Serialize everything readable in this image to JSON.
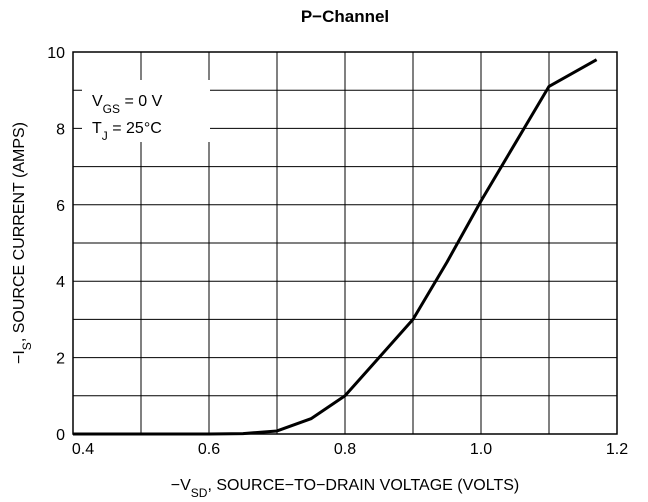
{
  "chart_data": {
    "type": "line",
    "title": "P−Channel",
    "xlabel": [
      {
        "text": "−V"
      },
      {
        "text": "SD",
        "sub": true
      },
      {
        "text": ", SOURCE−TO−DRAIN VOLTAGE (VOLTS)"
      }
    ],
    "ylabel": [
      {
        "text": "−I"
      },
      {
        "text": "S",
        "sub": true
      },
      {
        "text": ", SOURCE CURRENT (AMPS)"
      }
    ],
    "annotations": [
      [
        {
          "text": "V"
        },
        {
          "text": "GS",
          "sub": true
        },
        {
          "text": " = 0 V"
        }
      ],
      [
        {
          "text": "T"
        },
        {
          "text": "J",
          "sub": true
        },
        {
          "text": " = 25°C"
        }
      ]
    ],
    "x": [
      0.4,
      0.5,
      0.6,
      0.65,
      0.7,
      0.75,
      0.8,
      0.85,
      0.9,
      0.95,
      1.0,
      1.05,
      1.1,
      1.17
    ],
    "values": [
      0,
      0,
      0,
      0.01,
      0.08,
      0.4,
      1.0,
      2.0,
      3.0,
      4.5,
      6.1,
      7.6,
      9.1,
      9.8
    ],
    "color": "#000000",
    "xlim": [
      0.4,
      1.2
    ],
    "xticks": [
      0.4,
      0.6,
      0.8,
      {
        "value": 1,
        "label": "1.0"
      },
      1.2
    ],
    "xminor": [
      0.5,
      0.7,
      0.9,
      1.1
    ],
    "ylim": [
      0,
      10
    ],
    "yticks": [
      0,
      2,
      4,
      6,
      8,
      10
    ],
    "yminor": [
      1,
      3,
      5,
      7,
      9
    ],
    "grid": true
  }
}
